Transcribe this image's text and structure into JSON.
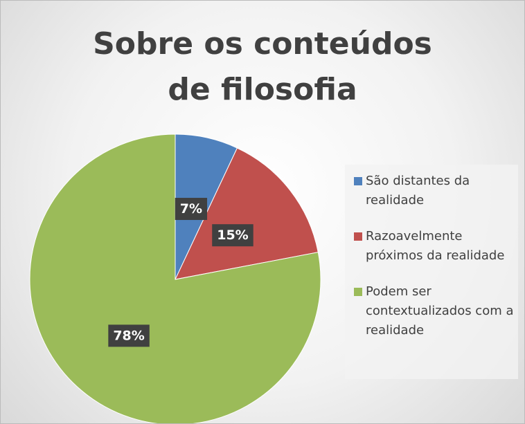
{
  "chart_data": {
    "type": "pie",
    "title": "Sobre os conteúdos de filosofia",
    "categories": [
      "São distantes da realidade",
      "Razoavelmente próximos da realidade",
      "Podem ser contextualizados com a realidade"
    ],
    "values": [
      7,
      15,
      78
    ],
    "value_labels": [
      "7%",
      "15%",
      "78%"
    ],
    "colors": [
      "#4f81bd",
      "#c0504d",
      "#9bbb59"
    ],
    "legend": "right"
  }
}
